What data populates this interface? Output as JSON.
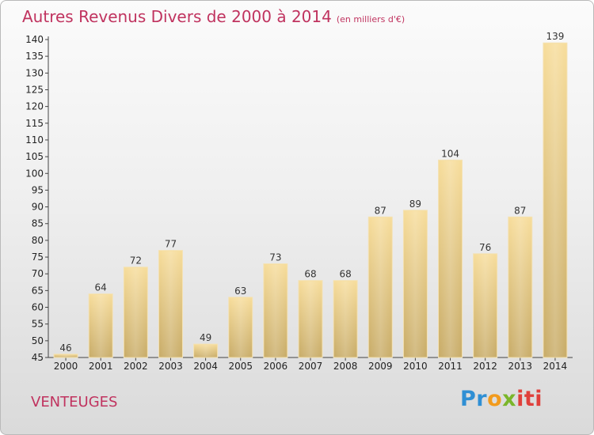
{
  "title": "Autres Revenus Divers de 2000 à 2014",
  "subtitle": "(en milliers d'€)",
  "place": "VENTEUGES",
  "logo": {
    "p1": "Pr",
    "p2": "o",
    "p3": "x",
    "p4": "iti"
  },
  "colors": {
    "title": "#c0335f",
    "bar_top": "#f7dd9c",
    "bar_bottom": "#c9ad6a"
  },
  "chart_data": {
    "type": "bar",
    "title": "Autres Revenus Divers de 2000 à 2014",
    "subtitle": "(en milliers d'€)",
    "categories": [
      "2000",
      "2001",
      "2002",
      "2003",
      "2004",
      "2005",
      "2006",
      "2007",
      "2008",
      "2009",
      "2010",
      "2011",
      "2012",
      "2013",
      "2014"
    ],
    "values": [
      46,
      64,
      72,
      77,
      49,
      63,
      73,
      68,
      68,
      87,
      89,
      104,
      76,
      87,
      139
    ],
    "ylim": [
      45,
      140
    ],
    "yticks": [
      45,
      50,
      55,
      60,
      65,
      70,
      75,
      80,
      85,
      90,
      95,
      100,
      105,
      110,
      115,
      120,
      125,
      130,
      135,
      140
    ],
    "grid": false,
    "legend": "none"
  }
}
